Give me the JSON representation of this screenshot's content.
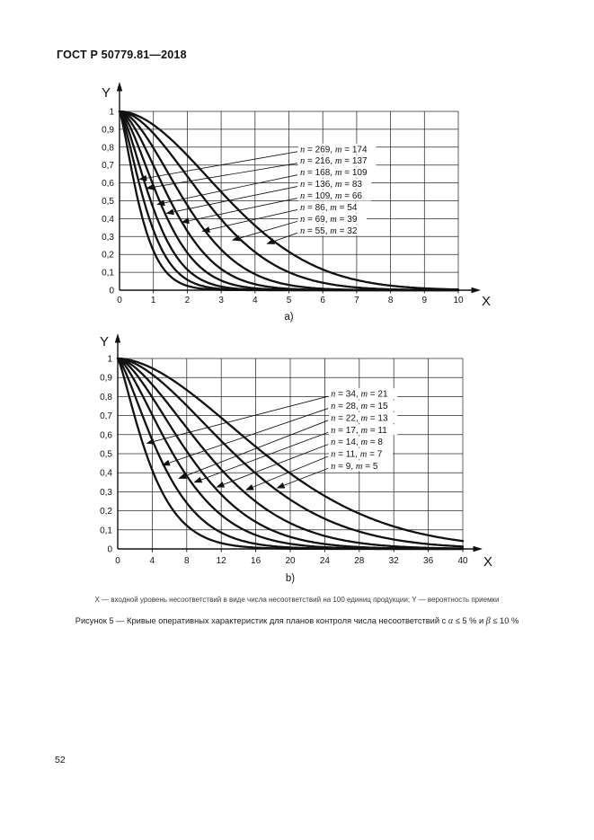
{
  "page": {
    "header": "ГОСТ Р 50779.81—2018",
    "axis_note": "X — входной уровень несоответствий в виде числа несоответствий на 100 единиц продукции; Y — вероятность приемки",
    "figure_caption_parts": {
      "p1": "Рисунок 5 — Кривые оперативных характеристик для планов контроля числа несоответствий с ",
      "alpha": "α",
      "p2": " ≤ 5 % и ",
      "beta": "β",
      "p3": " ≤ 10 %"
    },
    "page_number": "52"
  },
  "colors": {
    "ink": "#111111",
    "grid": "#2b2b2b",
    "background": "#ffffff"
  },
  "chart_data": [
    {
      "type": "line",
      "sub_label": "a)",
      "xlabel": "X",
      "ylabel": "Y",
      "xlim": [
        0,
        10
      ],
      "ylim": [
        0,
        1
      ],
      "grid": true,
      "legend_position": "inside-right",
      "x_ticks": [
        0,
        1,
        2,
        3,
        4,
        5,
        6,
        7,
        8,
        9,
        10
      ],
      "x_tick_labels": [
        "0",
        "1",
        "2",
        "3",
        "4",
        "5",
        "6",
        "7",
        "8",
        "9",
        "10"
      ],
      "y_ticks": [
        0,
        0.1,
        0.2,
        0.3,
        0.4,
        0.5,
        0.6,
        0.7,
        0.8,
        0.9,
        1
      ],
      "y_tick_labels": [
        "0",
        "0,1",
        "0,2",
        "0,3",
        "0,4",
        "0,5",
        "0,6",
        "0,7",
        "0,8",
        "0,9",
        "1"
      ],
      "curve_model": "y = exp(-(x/a)^b) with a = x50 / (ln2)^(1/b); all curves start at (0,1) and decay to 0",
      "series": [
        {
          "label": "n = 269, m = 174",
          "n": 269,
          "m": 174,
          "x50": 0.55,
          "b": 1.3
        },
        {
          "label": "n = 216, m = 137",
          "n": 216,
          "m": 137,
          "x50": 0.72,
          "b": 1.38
        },
        {
          "label": "n = 168, m = 109",
          "n": 168,
          "m": 109,
          "x50": 0.92,
          "b": 1.46
        },
        {
          "label": "n = 136, m = 83",
          "n": 136,
          "m": 83,
          "x50": 1.18,
          "b": 1.54
        },
        {
          "label": "n = 109, m = 66",
          "n": 109,
          "m": 66,
          "x50": 1.5,
          "b": 1.62
        },
        {
          "label": "n = 86, m = 54",
          "n": 86,
          "m": 54,
          "x50": 1.92,
          "b": 1.7
        },
        {
          "label": "n = 69, m = 39",
          "n": 69,
          "m": 39,
          "x50": 2.55,
          "b": 1.78
        },
        {
          "label": "n = 55, m = 32",
          "n": 55,
          "m": 32,
          "x50": 3.25,
          "b": 1.85
        }
      ],
      "legend": {
        "x": 5.33,
        "y_first": 0.79,
        "dy": 0.065,
        "arrow_tips": [
          [
            0.59,
            0.62
          ],
          [
            0.8,
            0.57
          ],
          [
            1.12,
            0.48
          ],
          [
            1.39,
            0.43
          ],
          [
            1.84,
            0.38
          ],
          [
            2.45,
            0.33
          ],
          [
            3.34,
            0.28
          ],
          [
            4.36,
            0.26
          ]
        ]
      }
    },
    {
      "type": "line",
      "sub_label": "b)",
      "xlabel": "X",
      "ylabel": "Y",
      "xlim": [
        0,
        40
      ],
      "ylim": [
        0,
        1
      ],
      "grid": true,
      "legend_position": "inside-right",
      "x_ticks": [
        0,
        4,
        8,
        12,
        16,
        20,
        24,
        28,
        32,
        36,
        40
      ],
      "x_tick_labels": [
        "0",
        "4",
        "8",
        "12",
        "16",
        "20",
        "24",
        "28",
        "32",
        "36",
        "40"
      ],
      "y_ticks": [
        0,
        0.1,
        0.2,
        0.3,
        0.4,
        0.5,
        0.6,
        0.7,
        0.8,
        0.9,
        1
      ],
      "y_tick_labels": [
        "0",
        "0,1",
        "0,2",
        "0,3",
        "0,4",
        "0,5",
        "0,6",
        "0,7",
        "0,8",
        "0,9",
        "1"
      ],
      "curve_model": "y = exp(-(x/a)^b) with a = x50 / (ln2)^(1/b); all curves start at (0,1) and decay to 0",
      "series": [
        {
          "label": "n = 34, m = 21",
          "n": 34,
          "m": 21,
          "x50": 3.3,
          "b": 1.25
        },
        {
          "label": "n = 28, m = 15",
          "n": 28,
          "m": 15,
          "x50": 4.7,
          "b": 1.35
        },
        {
          "label": "n = 22, m = 13",
          "n": 22,
          "m": 13,
          "x50": 6.4,
          "b": 1.45
        },
        {
          "label": "n = 17, m = 11",
          "n": 17,
          "m": 11,
          "x50": 8.2,
          "b": 1.55
        },
        {
          "label": "n = 14, m = 8",
          "n": 14,
          "m": 8,
          "x50": 10.4,
          "b": 1.62
        },
        {
          "label": "n = 11, m = 7",
          "n": 11,
          "m": 7,
          "x50": 13.5,
          "b": 1.7
        },
        {
          "label": "n = 9, m = 5",
          "n": 9,
          "m": 5,
          "x50": 17.0,
          "b": 1.78
        }
      ],
      "legend": {
        "x": 24.7,
        "y_first": 0.815,
        "dy": 0.063,
        "arrow_tips": [
          [
            3.4,
            0.555
          ],
          [
            5.2,
            0.44
          ],
          [
            7.1,
            0.37
          ],
          [
            8.9,
            0.35
          ],
          [
            11.5,
            0.325
          ],
          [
            14.9,
            0.31
          ],
          [
            18.5,
            0.32
          ]
        ]
      }
    }
  ]
}
